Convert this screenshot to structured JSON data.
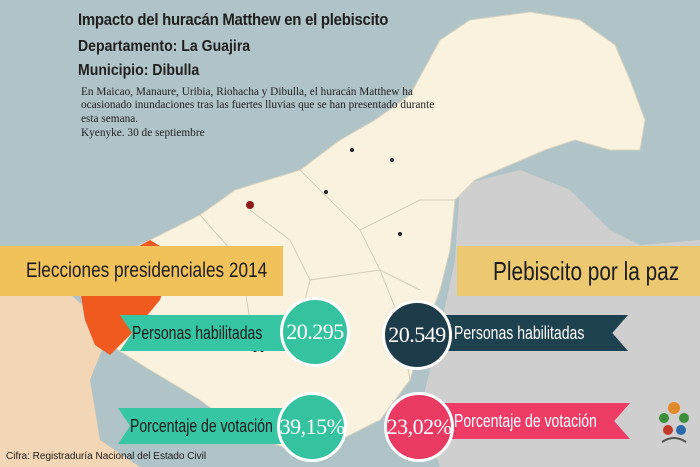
{
  "header": {
    "title": "Impacto del huracán Matthew en el plebiscito",
    "department": "Departamento: La Guajira",
    "municipality": "Municipio: Dibulla",
    "body": "En Maicao, Manaure, Uribia, Riohacha y Dibulla, el huracán Matthew ha ocasionado inundaciones tras las fuertes lluvias que se han presentado durante esta semana.",
    "source_line": "Kyenyke. 30 de septiembre"
  },
  "elections_2014": {
    "banner": "Elecciones presidenciales 2014",
    "habilitadas_label": "Personas habilitadas",
    "habilitadas_value": "20.295",
    "votacion_label": "Porcentaje de votación",
    "votacion_value": "39,15%"
  },
  "plebiscito": {
    "banner": "Plebiscito por la paz",
    "habilitadas_label": "Personas habilitadas",
    "habilitadas_value": "20.549",
    "votacion_label": "Porcentaje de votación",
    "votacion_value": "23,02%"
  },
  "footer": {
    "source": "Cifra: Registraduría Nacional del Estado Civil"
  },
  "colors": {
    "sea": "#b0c3c7",
    "land_guajira": "#f8f2de",
    "land_outside": "#cfcfcf",
    "dibulla_highlight": "#f05a1f",
    "teal": "#37c6a3",
    "navy": "#1e4150",
    "pink": "#ee3c67",
    "banner_gold": "#f2c25a"
  },
  "icons": {
    "logo": "partner-logo-icon"
  }
}
